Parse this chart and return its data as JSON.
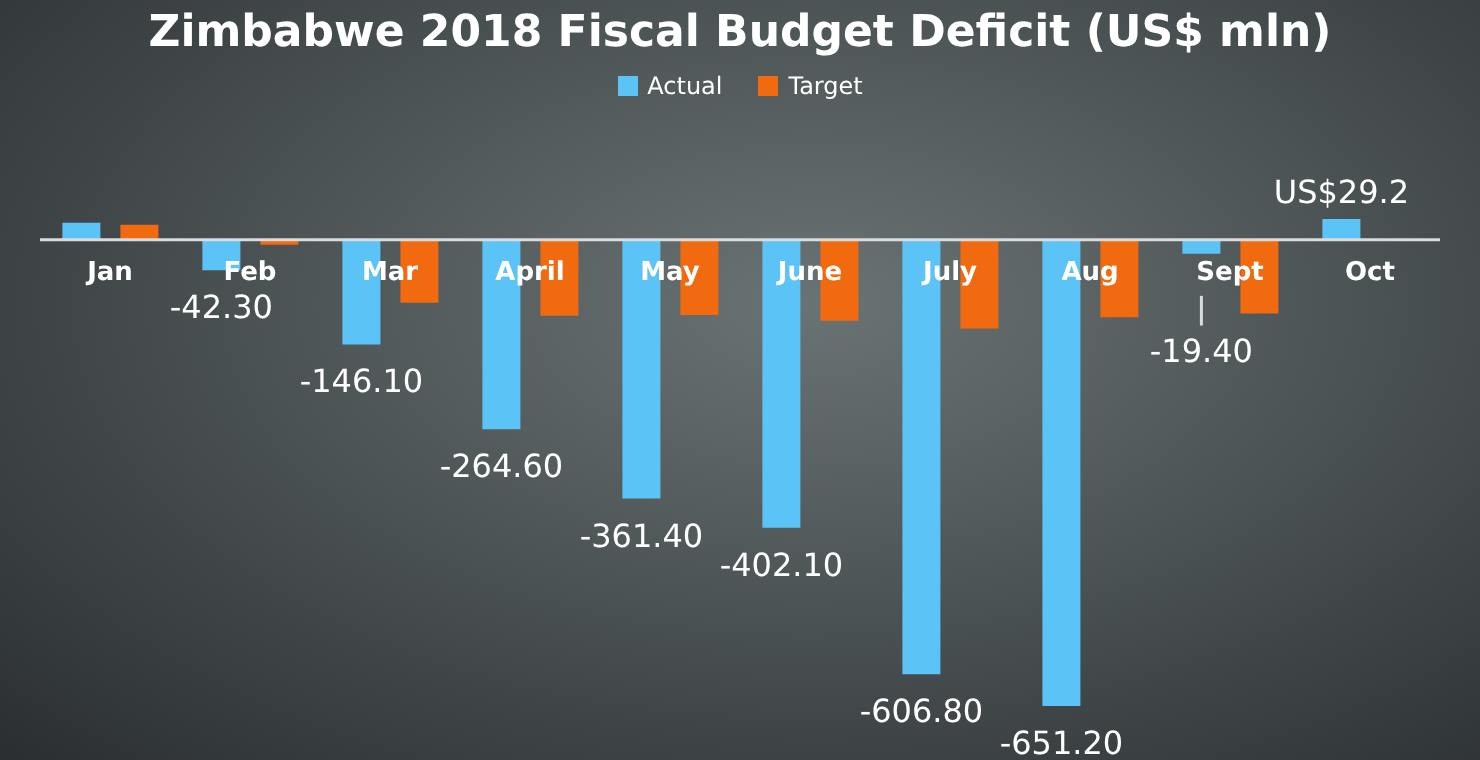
{
  "chart_data": {
    "type": "bar",
    "title": "Zimbabwe 2018 Fiscal Budget Deficit (US$ mln)",
    "categories": [
      "Jan",
      "Feb",
      "Mar",
      "April",
      "May",
      "June",
      "July",
      "Aug",
      "Sept",
      "Oct"
    ],
    "series": [
      {
        "name": "Actual",
        "color": "#5cc3f7",
        "values": [
          24,
          -42.3,
          -146.1,
          -264.6,
          -361.4,
          -402.1,
          -606.8,
          -651.2,
          -19.4,
          29.2
        ],
        "value_labels": [
          null,
          "-42.30",
          "-146.10",
          "-264.60",
          "-361.40",
          "-402.10",
          "-606.80",
          "-651.20",
          "-19.40",
          "US$29.2"
        ]
      },
      {
        "name": "Target",
        "color": "#f26a10",
        "values": [
          21,
          -7,
          -88,
          -106,
          -105,
          -113,
          -124,
          -108,
          -103,
          null
        ]
      }
    ],
    "legend": "top"
  }
}
